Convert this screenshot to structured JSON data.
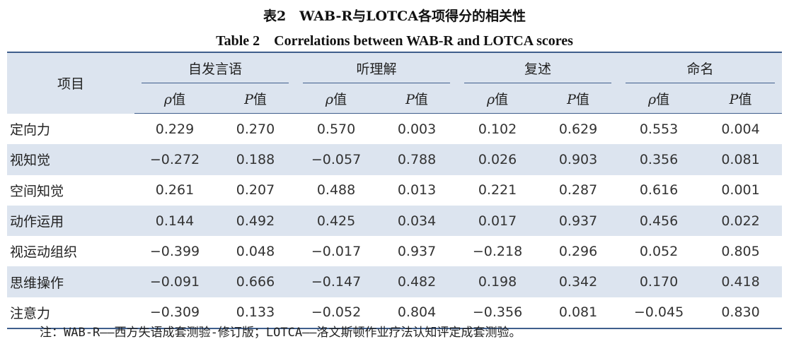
{
  "title_cn": "表2　WAB-R与LOTCA各项得分的相关性",
  "title_en": "Table 2　Correlations between WAB-R and LOTCA scores",
  "header": {
    "item": "项目",
    "groups": [
      "自发言语",
      "听理解",
      "复述",
      "命名"
    ],
    "rho_sym": "ρ",
    "p_sym": "P",
    "value_suffix": "值"
  },
  "rows": [
    {
      "label": "定向力",
      "values": [
        "0.229",
        "0.270",
        "0.570",
        "0.003",
        "0.102",
        "0.629",
        "0.553",
        "0.004"
      ]
    },
    {
      "label": "视知觉",
      "values": [
        "−0.272",
        "0.188",
        "−0.057",
        "0.788",
        "0.026",
        "0.903",
        "0.356",
        "0.081"
      ]
    },
    {
      "label": "空间知觉",
      "values": [
        "0.261",
        "0.207",
        "0.488",
        "0.013",
        "0.221",
        "0.287",
        "0.616",
        "0.001"
      ]
    },
    {
      "label": "动作运用",
      "values": [
        "0.144",
        "0.492",
        "0.425",
        "0.034",
        "0.017",
        "0.937",
        "0.456",
        "0.022"
      ]
    },
    {
      "label": "视运动组织",
      "values": [
        "−0.399",
        "0.048",
        "−0.017",
        "0.937",
        "−0.218",
        "0.296",
        "0.052",
        "0.805"
      ]
    },
    {
      "label": "思维操作",
      "values": [
        "−0.091",
        "0.666",
        "−0.147",
        "0.482",
        "0.198",
        "0.342",
        "0.170",
        "0.418"
      ]
    },
    {
      "label": "注意力",
      "values": [
        "−0.309",
        "0.133",
        "−0.052",
        "0.804",
        "−0.356",
        "0.081",
        "−0.045",
        "0.830"
      ]
    }
  ],
  "note": "注：WAB-R——西方失语成套测验-修订版；LOTCA——洛文斯顿作业疗法认知评定成套测验。"
}
